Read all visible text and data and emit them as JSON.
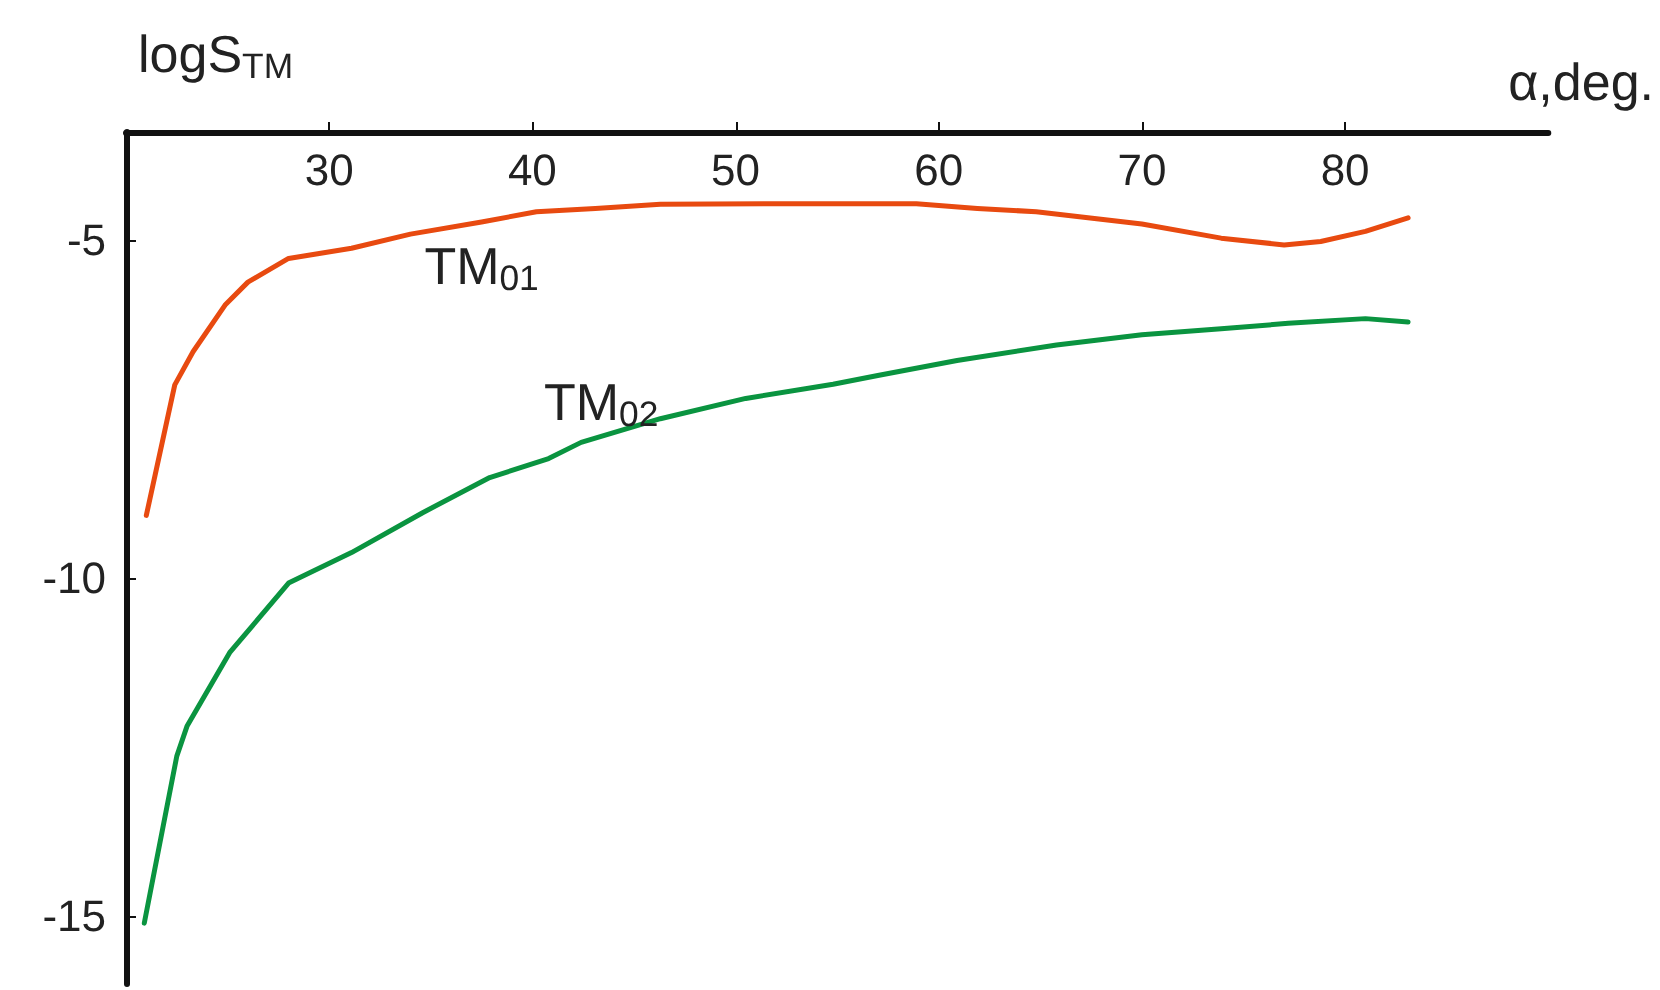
{
  "chart_data": {
    "type": "line",
    "xlabel": "α,deg.",
    "ylabel": "logS$_{TM}$",
    "xlim": [
      20,
      90
    ],
    "xticks": [
      30,
      40,
      50,
      60,
      70,
      80
    ],
    "ylim": [
      -16,
      -3.4
    ],
    "yticks": [
      -5,
      -10,
      -15
    ],
    "grid": false,
    "legend": false,
    "marker": "none",
    "line_style": "solid",
    "series": [
      {
        "name": "TM$_{01}$",
        "color": "#e84a10",
        "x": [
          21,
          22.4,
          23.3,
          24.9,
          26,
          28,
          31.1,
          34,
          37.5,
          40.2,
          43.1,
          46.3,
          52.8,
          58.9,
          61.9,
          64.8,
          70,
          73.9,
          77,
          78.8,
          81,
          83.1
        ],
        "values": [
          -9.07,
          -7.14,
          -6.65,
          -5.95,
          -5.62,
          -5.27,
          -5.12,
          -4.91,
          -4.73,
          -4.58,
          -4.53,
          -4.47,
          -4.46,
          -4.46,
          -4.53,
          -4.58,
          -4.76,
          -4.97,
          -5.07,
          -5.02,
          -4.87,
          -4.67
        ]
      },
      {
        "name": "TM$_{02}$",
        "color": "#0a9440",
        "x": [
          20.9,
          22.5,
          23,
          25.1,
          26.2,
          28,
          31.1,
          34.6,
          37.9,
          40.8,
          42.4,
          46.3,
          50.5,
          54.8,
          57,
          60.9,
          65.8,
          70,
          73.9,
          77.2,
          81,
          83.1
        ],
        "values": [
          -15.1,
          -12.63,
          -12.19,
          -11.1,
          -10.71,
          -10.07,
          -9.62,
          -9.03,
          -8.51,
          -8.23,
          -7.99,
          -7.64,
          -7.34,
          -7.13,
          -7.0,
          -6.78,
          -6.55,
          -6.4,
          -6.31,
          -6.23,
          -6.16,
          -6.21
        ]
      }
    ]
  }
}
